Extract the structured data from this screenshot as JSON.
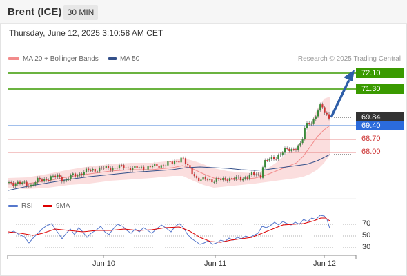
{
  "header": {
    "instrument": "Brent (ICE)",
    "timeframe": "30 MIN"
  },
  "datetime": "Thursday, June 12, 2025 3:10:58 AM CET",
  "legend": {
    "ma_bb_label": "MA 20 + Bollinger Bands",
    "ma50_label": "MA 50",
    "copyright": "Research © 2025 Trading Central",
    "ma_bb_color": "#f28b8b",
    "ma50_color": "#34508a"
  },
  "price_levels": {
    "target2": "72.10",
    "target1": "71.30",
    "last": "69.84",
    "pivot": "69.40",
    "support1": "68.70",
    "support2": "68.00"
  },
  "rsi_panel": {
    "rsi_label": "RSI",
    "ma_label": "9MA",
    "rsi_color": "#5577cc",
    "ma_color": "#dd0000",
    "ticks": [
      "70",
      "50",
      "30"
    ]
  },
  "x_axis": {
    "labels": [
      "Jun 10",
      "Jun 11",
      "Jun 12"
    ]
  },
  "colors": {
    "target_green": "#3a9a00",
    "pivot_blue": "#2b6bdc",
    "support_red": "#e06666",
    "last_dark": "#333333",
    "bullish_candle": "#3a8a3a",
    "bearish_candle": "#cc3333",
    "arrow_blue": "#2e5ea8"
  }
}
